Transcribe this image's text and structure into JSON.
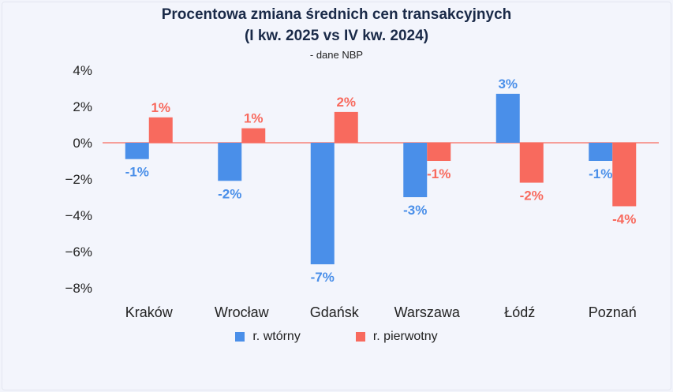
{
  "chart_data": {
    "type": "bar",
    "title_line1": "Procentowa zmiana średnich cen transakcyjnych",
    "title_line2": "(I kw. 2025 vs IV kw. 2024)",
    "subtitle": "- dane NBP",
    "categories": [
      "Kraków",
      "Wrocław",
      "Gdańsk",
      "Warszawa",
      "Łódź",
      "Poznań"
    ],
    "series": [
      {
        "name": "r. wtórny",
        "color": "#4a8fe9",
        "values": [
          -0.9,
          -2.1,
          -6.7,
          -3.0,
          2.7,
          -1.0
        ],
        "labels": [
          "-1%",
          "-2%",
          "-7%",
          "-3%",
          "3%",
          "-1%"
        ]
      },
      {
        "name": "r. pierwotny",
        "color": "#f86a5e",
        "values": [
          1.4,
          0.8,
          1.7,
          -1.0,
          -2.2,
          -3.5
        ],
        "labels": [
          "1%",
          "1%",
          "2%",
          "-1%",
          "-2%",
          "-4%"
        ]
      }
    ],
    "yticks": [
      "4%",
      "2%",
      "0%",
      "−2%",
      "−4%",
      "−6%",
      "−8%"
    ],
    "ytick_values": [
      4,
      2,
      0,
      -2,
      -4,
      -6,
      -8
    ],
    "ylim": [
      -8,
      4
    ],
    "grid": false,
    "zero_line_color": "#f86a5e",
    "legend_position": "bottom"
  }
}
